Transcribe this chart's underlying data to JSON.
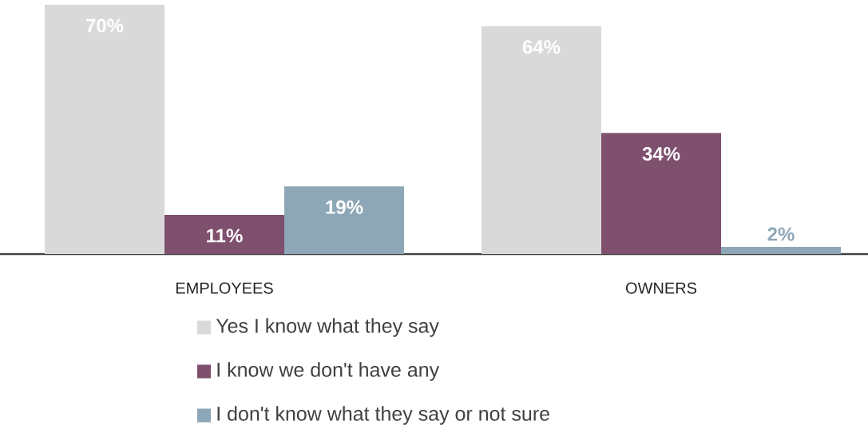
{
  "chart_data": {
    "type": "bar",
    "categories": [
      "EMPLOYEES",
      "OWNERS"
    ],
    "series": [
      {
        "name": "Yes I know what they say",
        "color": "#d9d9d9",
        "values": [
          70,
          64
        ],
        "value_labels": [
          "70%",
          "64%"
        ]
      },
      {
        "name": "I know we don't have any",
        "color": "#7f4f6e",
        "values": [
          11,
          34
        ],
        "value_labels": [
          "11%",
          "34%"
        ]
      },
      {
        "name": "I don't know what they say or not sure",
        "color": "#8ea7b7",
        "values": [
          19,
          2
        ],
        "value_labels": [
          "19%",
          "2%"
        ]
      }
    ],
    "legend": "bottom",
    "grid": false
  }
}
